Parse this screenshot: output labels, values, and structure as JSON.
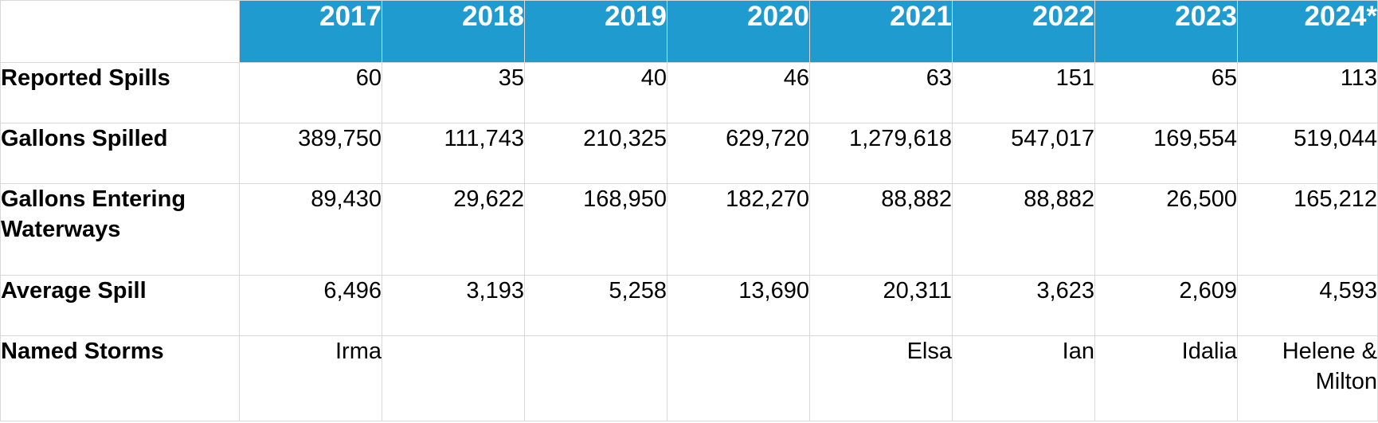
{
  "chart_data": {
    "type": "table",
    "columns": [
      "2017",
      "2018",
      "2019",
      "2020",
      "2021",
      "2022",
      "2023",
      "2024*"
    ],
    "rows": [
      {
        "label": "Reported Spills",
        "values": [
          "60",
          "35",
          "40",
          "46",
          "63",
          "151",
          "65",
          "113"
        ]
      },
      {
        "label": "Gallons Spilled",
        "values": [
          "389,750",
          "111,743",
          "210,325",
          "629,720",
          "1,279,618",
          "547,017",
          "169,554",
          "519,044"
        ]
      },
      {
        "label": "Gallons Entering Waterways",
        "values": [
          "89,430",
          "29,622",
          "168,950",
          "182,270",
          "88,882",
          "88,882",
          "26,500",
          "165,212"
        ]
      },
      {
        "label": "Average Spill",
        "values": [
          "6,496",
          "3,193",
          "5,258",
          "13,690",
          "20,311",
          "3,623",
          "2,609",
          "4,593"
        ]
      },
      {
        "label": "Named Storms",
        "values": [
          "Irma",
          "",
          "",
          "",
          "Elsa",
          "Ian",
          "Idalia",
          "Helene & Milton"
        ]
      }
    ]
  },
  "colors": {
    "header_background": "#1f9bd0",
    "header_text": "#ffffff",
    "grid": "#d9d9d9"
  }
}
